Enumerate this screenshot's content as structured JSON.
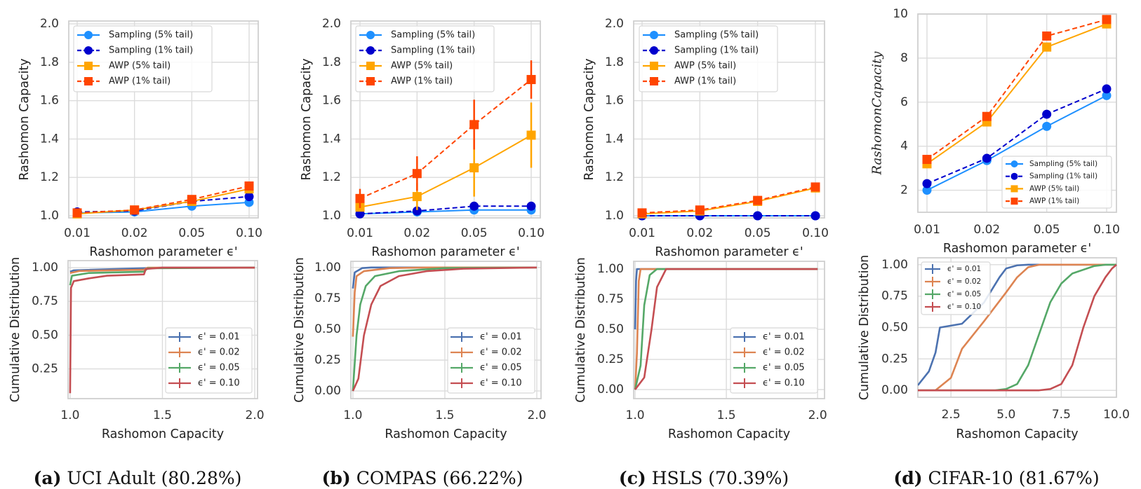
{
  "captions": [
    {
      "letter": "(a)",
      "text": "UCI Adult (80.28%)"
    },
    {
      "letter": "(b)",
      "text": "COMPAS (66.22%)"
    },
    {
      "letter": "(c)",
      "text": "HSLS (70.39%)"
    },
    {
      "letter": "(d)",
      "text": "CIFAR-10 (81.67%)"
    }
  ],
  "chart_data": [
    {
      "panel": "a-top",
      "type": "line",
      "xlabel": "Rashomon parameter ϵ'",
      "ylabel": "Rashomon Capacity",
      "categories": [
        "0.01",
        "0.02",
        "0.05",
        "0.10"
      ],
      "ylim": [
        0.989,
        2.015
      ],
      "yticks": [
        1.0,
        1.2,
        1.4,
        1.6,
        1.8,
        2.0
      ],
      "ytick_labels": [
        "1.0",
        "1.2",
        "1.4",
        "1.6",
        "1.8",
        "2.0"
      ],
      "grid": true,
      "legend": "upper-left",
      "series": [
        {
          "name": "Sampling (5% tail)",
          "color": "#1e90ff",
          "style": "solid",
          "marker": "circle",
          "values": [
            1.015,
            1.02,
            1.05,
            1.07
          ]
        },
        {
          "name": "Sampling (1% tail)",
          "color": "#0000cd",
          "style": "dashed",
          "marker": "circle",
          "values": [
            1.02,
            1.025,
            1.075,
            1.1
          ]
        },
        {
          "name": "AWP (5% tail)",
          "color": "#ffa500",
          "style": "solid",
          "marker": "square",
          "values": [
            1.01,
            1.03,
            1.075,
            1.14
          ]
        },
        {
          "name": "AWP (1% tail)",
          "color": "#ff4500",
          "style": "dashed",
          "marker": "square",
          "values": [
            1.015,
            1.03,
            1.085,
            1.155
          ]
        }
      ]
    },
    {
      "panel": "a-bottom",
      "type": "line",
      "xlabel": "Rashomon Capacity",
      "ylabel": "Cumulative Distribution",
      "xlim": [
        0.989,
        2.015
      ],
      "ylim": [
        0.03,
        1.052
      ],
      "xticks": [
        1.0,
        1.5,
        2.0
      ],
      "xtick_labels": [
        "1.0",
        "1.5",
        "2.0"
      ],
      "yticks": [
        0.25,
        0.5,
        0.75,
        1.0
      ],
      "ytick_labels": [
        "0.25",
        "0.50",
        "0.75",
        "1.00"
      ],
      "grid": true,
      "legend": "lower-right",
      "series": [
        {
          "name": "ϵ' = 0.01",
          "color": "#4c72b0",
          "points": [
            [
              1.0,
              0.97
            ],
            [
              1.02,
              0.98
            ],
            [
              1.5,
              1.0
            ],
            [
              2.0,
              1.0
            ]
          ]
        },
        {
          "name": "ϵ' = 0.02",
          "color": "#dd8452",
          "points": [
            [
              1.0,
              0.96
            ],
            [
              1.05,
              0.975
            ],
            [
              1.4,
              0.985
            ],
            [
              1.42,
              1.0
            ],
            [
              2.0,
              1.0
            ]
          ]
        },
        {
          "name": "ϵ' = 0.05",
          "color": "#55a868",
          "points": [
            [
              1.0,
              0.87
            ],
            [
              1.01,
              0.94
            ],
            [
              1.1,
              0.96
            ],
            [
              1.4,
              0.97
            ],
            [
              1.42,
              0.995
            ],
            [
              2.0,
              1.0
            ]
          ]
        },
        {
          "name": "ϵ' = 0.10",
          "color": "#c44e52",
          "points": [
            [
              1.0,
              0.07
            ],
            [
              1.005,
              0.85
            ],
            [
              1.02,
              0.9
            ],
            [
              1.1,
              0.92
            ],
            [
              1.2,
              0.94
            ],
            [
              1.4,
              0.95
            ],
            [
              1.41,
              0.99
            ],
            [
              1.5,
              1.0
            ],
            [
              2.0,
              1.0
            ]
          ]
        }
      ]
    },
    {
      "panel": "b-top",
      "type": "line",
      "xlabel": "Rashomon parameter ϵ'",
      "ylabel": "Rashomon Capacity",
      "categories": [
        "0.01",
        "0.02",
        "0.05",
        "0.10"
      ],
      "ylim": [
        0.989,
        2.015
      ],
      "yticks": [
        1.0,
        1.2,
        1.4,
        1.6,
        1.8,
        2.0
      ],
      "ytick_labels": [
        "1.0",
        "1.2",
        "1.4",
        "1.6",
        "1.8",
        "2.0"
      ],
      "grid": true,
      "legend": "upper-left",
      "series": [
        {
          "name": "Sampling (5% tail)",
          "color": "#1e90ff",
          "style": "solid",
          "marker": "circle",
          "values": [
            1.01,
            1.02,
            1.03,
            1.03
          ]
        },
        {
          "name": "Sampling (1% tail)",
          "color": "#0000cd",
          "style": "dashed",
          "marker": "circle",
          "values": [
            1.01,
            1.025,
            1.05,
            1.05
          ]
        },
        {
          "name": "AWP (5% tail)",
          "color": "#ffa500",
          "style": "solid",
          "marker": "square",
          "values": [
            1.045,
            1.1,
            1.25,
            1.42
          ],
          "err": [
            0.02,
            0.07,
            0.15,
            0.17
          ]
        },
        {
          "name": "AWP (1% tail)",
          "color": "#ff4500",
          "style": "dashed",
          "marker": "square",
          "values": [
            1.09,
            1.22,
            1.475,
            1.71
          ],
          "err": [
            0.05,
            0.09,
            0.13,
            0.1
          ]
        }
      ]
    },
    {
      "panel": "b-bottom",
      "type": "line",
      "xlabel": "Rashomon Capacity",
      "ylabel": "Cumulative Distribution",
      "xlim": [
        0.989,
        2.023
      ],
      "ylim": [
        -0.062,
        1.05
      ],
      "xticks": [
        1.0,
        1.5,
        2.0
      ],
      "xtick_labels": [
        "1.0",
        "1.5",
        "2.0"
      ],
      "yticks": [
        0.0,
        0.25,
        0.5,
        0.75,
        1.0
      ],
      "ytick_labels": [
        "0.00",
        "0.25",
        "0.50",
        "0.75",
        "1.00"
      ],
      "grid": true,
      "legend": "lower-right",
      "series": [
        {
          "name": "ϵ' = 0.01",
          "color": "#4c72b0",
          "points": [
            [
              1.0,
              0.83
            ],
            [
              1.01,
              0.96
            ],
            [
              1.05,
              0.995
            ],
            [
              1.1,
              1.0
            ],
            [
              2.0,
              1.0
            ]
          ]
        },
        {
          "name": "ϵ' = 0.02",
          "color": "#dd8452",
          "points": [
            [
              1.0,
              0.44
            ],
            [
              1.01,
              0.8
            ],
            [
              1.02,
              0.93
            ],
            [
              1.06,
              0.97
            ],
            [
              1.2,
              0.995
            ],
            [
              1.4,
              1.0
            ],
            [
              2.0,
              1.0
            ]
          ]
        },
        {
          "name": "ϵ' = 0.05",
          "color": "#55a868",
          "points": [
            [
              1.0,
              0.0
            ],
            [
              1.02,
              0.45
            ],
            [
              1.04,
              0.7
            ],
            [
              1.07,
              0.85
            ],
            [
              1.12,
              0.93
            ],
            [
              1.25,
              0.97
            ],
            [
              1.5,
              0.995
            ],
            [
              2.0,
              1.0
            ]
          ]
        },
        {
          "name": "ϵ' = 0.10",
          "color": "#c44e52",
          "points": [
            [
              1.0,
              0.0
            ],
            [
              1.03,
              0.1
            ],
            [
              1.06,
              0.45
            ],
            [
              1.1,
              0.7
            ],
            [
              1.15,
              0.85
            ],
            [
              1.25,
              0.93
            ],
            [
              1.4,
              0.97
            ],
            [
              1.6,
              0.99
            ],
            [
              2.0,
              1.0
            ]
          ]
        }
      ]
    },
    {
      "panel": "c-top",
      "type": "line",
      "xlabel": "Rashomon parameter ϵ'",
      "ylabel": "Rashomon Capacity",
      "categories": [
        "0.01",
        "0.02",
        "0.05",
        "0.10"
      ],
      "ylim": [
        0.989,
        2.015
      ],
      "yticks": [
        1.0,
        1.2,
        1.4,
        1.6,
        1.8,
        2.0
      ],
      "ytick_labels": [
        "1.0",
        "1.2",
        "1.4",
        "1.6",
        "1.8",
        "2.0"
      ],
      "grid": true,
      "legend": "upper-left",
      "series": [
        {
          "name": "Sampling (5% tail)",
          "color": "#1e90ff",
          "style": "solid",
          "marker": "circle",
          "values": [
            1.0,
            1.0,
            1.0,
            1.0
          ]
        },
        {
          "name": "Sampling (1% tail)",
          "color": "#0000cd",
          "style": "dashed",
          "marker": "circle",
          "values": [
            1.0,
            1.0,
            1.0,
            1.0
          ]
        },
        {
          "name": "AWP (5% tail)",
          "color": "#ffa500",
          "style": "solid",
          "marker": "square",
          "values": [
            1.01,
            1.025,
            1.075,
            1.145
          ]
        },
        {
          "name": "AWP (1% tail)",
          "color": "#ff4500",
          "style": "dashed",
          "marker": "square",
          "values": [
            1.015,
            1.03,
            1.08,
            1.15
          ]
        }
      ]
    },
    {
      "panel": "c-bottom",
      "type": "line",
      "xlabel": "Rashomon Capacity",
      "ylabel": "Cumulative Distribution",
      "xlim": [
        0.992,
        2.038
      ],
      "ylim": [
        -0.075,
        1.064
      ],
      "xticks": [
        1.0,
        1.5,
        2.0
      ],
      "xtick_labels": [
        "1.0",
        "1.5",
        "2.0"
      ],
      "yticks": [
        0.0,
        0.25,
        0.5,
        0.75,
        1.0
      ],
      "ytick_labels": [
        "0.00",
        "0.25",
        "0.50",
        "0.75",
        "1.00"
      ],
      "grid": true,
      "legend": "lower-right",
      "series": [
        {
          "name": "ϵ' = 0.01",
          "color": "#4c72b0",
          "points": [
            [
              1.0,
              0.5
            ],
            [
              1.005,
              0.9
            ],
            [
              1.01,
              1.0
            ],
            [
              2.0,
              1.0
            ]
          ]
        },
        {
          "name": "ϵ' = 0.02",
          "color": "#dd8452",
          "points": [
            [
              1.0,
              0.0
            ],
            [
              1.01,
              0.3
            ],
            [
              1.02,
              0.9
            ],
            [
              1.03,
              1.0
            ],
            [
              2.0,
              1.0
            ]
          ]
        },
        {
          "name": "ϵ' = 0.05",
          "color": "#55a868",
          "points": [
            [
              1.0,
              0.0
            ],
            [
              1.03,
              0.2
            ],
            [
              1.05,
              0.7
            ],
            [
              1.08,
              0.95
            ],
            [
              1.12,
              1.0
            ],
            [
              2.0,
              1.0
            ]
          ]
        },
        {
          "name": "ϵ' = 0.10",
          "color": "#c44e52",
          "points": [
            [
              1.0,
              0.0
            ],
            [
              1.05,
              0.1
            ],
            [
              1.09,
              0.5
            ],
            [
              1.12,
              0.85
            ],
            [
              1.17,
              1.0
            ],
            [
              2.0,
              1.0
            ]
          ]
        }
      ]
    },
    {
      "panel": "d-top",
      "type": "line",
      "xlabel": "Rashomon parameter ϵ'",
      "ylabel": "RashomonCapacity",
      "categories": [
        "0.01",
        "0.02",
        "0.05",
        "0.10"
      ],
      "ylim": [
        1.0,
        10.0
      ],
      "yticks": [
        2,
        4,
        6,
        8,
        10
      ],
      "ytick_labels": [
        "2",
        "4",
        "6",
        "8",
        "10"
      ],
      "grid": true,
      "legend": "lower-right",
      "series": [
        {
          "name": "Sampling (5% tail)",
          "color": "#1e90ff",
          "style": "solid",
          "marker": "circle",
          "values": [
            2.0,
            3.35,
            4.9,
            6.3
          ]
        },
        {
          "name": "Sampling (1% tail)",
          "color": "#0000cd",
          "style": "dashed",
          "marker": "circle",
          "values": [
            2.3,
            3.45,
            5.45,
            6.6
          ]
        },
        {
          "name": "AWP (5% tail)",
          "color": "#ffa500",
          "style": "solid",
          "marker": "square",
          "values": [
            3.2,
            5.1,
            8.5,
            9.55
          ]
        },
        {
          "name": "AWP (1% tail)",
          "color": "#ff4500",
          "style": "dashed",
          "marker": "square",
          "values": [
            3.4,
            5.35,
            9.0,
            9.75
          ]
        }
      ]
    },
    {
      "panel": "d-bottom",
      "type": "line",
      "xlabel": "Rashomon Capacity",
      "ylabel": "Cumulative Distribution",
      "xlim": [
        1.0,
        10.0
      ],
      "ylim": [
        -0.055,
        1.055
      ],
      "xticks": [
        2.5,
        5.0,
        7.5,
        10.0
      ],
      "xtick_labels": [
        "2.5",
        "5.0",
        "7.5",
        "10.0"
      ],
      "yticks": [
        0.0,
        0.25,
        0.5,
        0.75,
        1.0
      ],
      "ytick_labels": [
        "0.00",
        "0.25",
        "0.50",
        "0.75",
        "1.00"
      ],
      "grid": true,
      "legend": "upper-left",
      "series": [
        {
          "name": "ϵ' = 0.01",
          "color": "#4c72b0",
          "points": [
            [
              1.0,
              0.04
            ],
            [
              1.5,
              0.15
            ],
            [
              1.8,
              0.3
            ],
            [
              2.0,
              0.5
            ],
            [
              3.0,
              0.53
            ],
            [
              4.0,
              0.7
            ],
            [
              4.7,
              0.9
            ],
            [
              5.0,
              0.97
            ],
            [
              5.5,
              0.995
            ],
            [
              6.0,
              1.0
            ],
            [
              10.0,
              1.0
            ]
          ]
        },
        {
          "name": "ϵ' = 0.02",
          "color": "#dd8452",
          "points": [
            [
              1.0,
              0.0
            ],
            [
              1.8,
              0.0
            ],
            [
              2.5,
              0.1
            ],
            [
              3.0,
              0.33
            ],
            [
              4.0,
              0.55
            ],
            [
              5.0,
              0.78
            ],
            [
              5.5,
              0.9
            ],
            [
              6.0,
              0.98
            ],
            [
              6.5,
              1.0
            ],
            [
              10.0,
              1.0
            ]
          ]
        },
        {
          "name": "ϵ' = 0.05",
          "color": "#55a868",
          "points": [
            [
              1.0,
              0.0
            ],
            [
              4.5,
              0.0
            ],
            [
              5.0,
              0.01
            ],
            [
              5.5,
              0.05
            ],
            [
              6.0,
              0.2
            ],
            [
              6.5,
              0.45
            ],
            [
              7.0,
              0.7
            ],
            [
              7.5,
              0.85
            ],
            [
              8.0,
              0.93
            ],
            [
              9.0,
              0.99
            ],
            [
              9.5,
              1.0
            ],
            [
              10.0,
              1.0
            ]
          ]
        },
        {
          "name": "ϵ' = 0.10",
          "color": "#c44e52",
          "points": [
            [
              1.0,
              0.0
            ],
            [
              6.5,
              0.0
            ],
            [
              7.0,
              0.01
            ],
            [
              7.5,
              0.05
            ],
            [
              8.0,
              0.2
            ],
            [
              8.5,
              0.5
            ],
            [
              9.0,
              0.75
            ],
            [
              9.5,
              0.9
            ],
            [
              9.8,
              0.97
            ],
            [
              10.0,
              1.0
            ]
          ]
        }
      ]
    }
  ]
}
